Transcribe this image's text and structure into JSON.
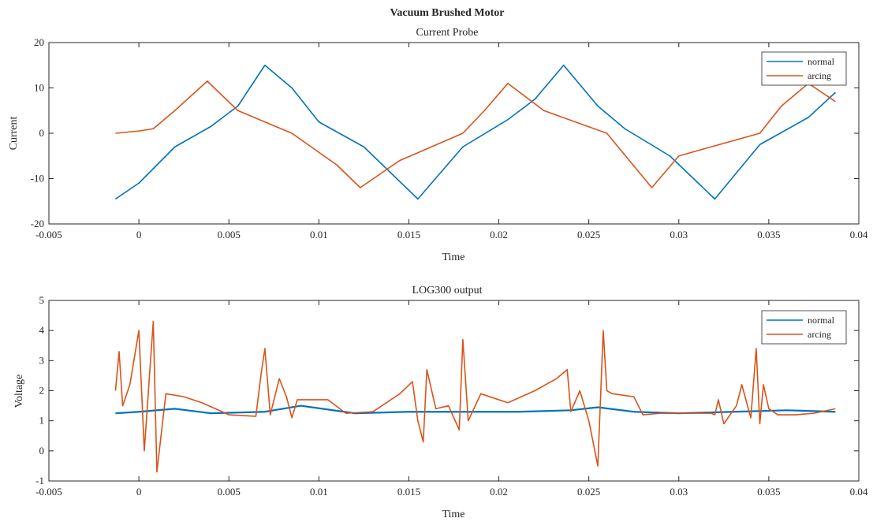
{
  "figure": {
    "title": "Vacuum Brushed Motor"
  },
  "chart_data": [
    {
      "type": "line",
      "title": "Current Probe",
      "xlabel": "Time",
      "ylabel": "Current",
      "xlim": [
        -0.005,
        0.04
      ],
      "ylim": [
        -20,
        20
      ],
      "xticks": [
        "-0.005",
        "0",
        "0.005",
        "0.01",
        "0.015",
        "0.02",
        "0.025",
        "0.03",
        "0.035",
        "0.04"
      ],
      "yticks": [
        "-20",
        "-10",
        "0",
        "10",
        "20"
      ],
      "grid": false,
      "legend_position": "top-right",
      "series": [
        {
          "name": "normal",
          "color": "#0072BD",
          "x": [
            -0.0013,
            0.0,
            0.002,
            0.004,
            0.0055,
            0.007,
            0.0085,
            0.01,
            0.0125,
            0.0155,
            0.018,
            0.0205,
            0.022,
            0.0236,
            0.0255,
            0.027,
            0.0295,
            0.032,
            0.0345,
            0.0372,
            0.0387
          ],
          "y": [
            -14.5,
            -11,
            -3,
            1.5,
            6,
            15,
            10,
            2.5,
            -3,
            -14.5,
            -3,
            3,
            7.5,
            15,
            6,
            1,
            -5,
            -14.5,
            -2.5,
            3.5,
            9
          ]
        },
        {
          "name": "arcing",
          "color": "#D95319",
          "x": [
            -0.0013,
            0.0,
            0.0008,
            0.002,
            0.0038,
            0.0055,
            0.0085,
            0.011,
            0.0123,
            0.0145,
            0.018,
            0.0192,
            0.0205,
            0.0225,
            0.026,
            0.0285,
            0.03,
            0.0345,
            0.0357,
            0.0372,
            0.0387
          ],
          "y": [
            0,
            0.5,
            1,
            5,
            11.5,
            5,
            0,
            -7,
            -12,
            -6,
            0,
            5,
            11,
            5,
            0,
            -12,
            -5,
            0,
            6,
            11,
            7
          ]
        }
      ]
    },
    {
      "type": "line",
      "title": "LOG300 output",
      "xlabel": "Time",
      "ylabel": "Voltage",
      "xlim": [
        -0.005,
        0.04
      ],
      "ylim": [
        -1,
        5
      ],
      "xticks": [
        "-0.005",
        "0",
        "0.005",
        "0.01",
        "0.015",
        "0.02",
        "0.025",
        "0.03",
        "0.035",
        "0.04"
      ],
      "yticks": [
        "-1",
        "0",
        "1",
        "2",
        "3",
        "4",
        "5"
      ],
      "grid": false,
      "legend_position": "top-right",
      "series": [
        {
          "name": "normal",
          "color": "#0072BD",
          "x": [
            -0.0013,
            0.0,
            0.002,
            0.004,
            0.007,
            0.009,
            0.012,
            0.015,
            0.018,
            0.021,
            0.024,
            0.0255,
            0.0275,
            0.03,
            0.033,
            0.036,
            0.0387
          ],
          "y": [
            1.25,
            1.3,
            1.4,
            1.25,
            1.3,
            1.5,
            1.25,
            1.3,
            1.3,
            1.3,
            1.35,
            1.45,
            1.3,
            1.25,
            1.3,
            1.35,
            1.3
          ]
        },
        {
          "name": "arcing",
          "color": "#D95319",
          "x": [
            -0.0013,
            -0.0011,
            -0.0009,
            -0.0005,
            0.0,
            0.0003,
            0.0006,
            0.0008,
            0.001,
            0.0015,
            0.0025,
            0.0035,
            0.005,
            0.0065,
            0.0068,
            0.007,
            0.0073,
            0.0078,
            0.0082,
            0.0085,
            0.0088,
            0.0095,
            0.0105,
            0.0115,
            0.013,
            0.0145,
            0.0152,
            0.0155,
            0.0158,
            0.016,
            0.0165,
            0.0172,
            0.0178,
            0.018,
            0.0183,
            0.019,
            0.0205,
            0.022,
            0.0232,
            0.0238,
            0.024,
            0.0245,
            0.025,
            0.0255,
            0.0258,
            0.026,
            0.0263,
            0.0275,
            0.028,
            0.029,
            0.0305,
            0.0318,
            0.032,
            0.0322,
            0.0325,
            0.0332,
            0.0335,
            0.034,
            0.0343,
            0.0345,
            0.0347,
            0.035,
            0.0355,
            0.0365,
            0.0375,
            0.0387
          ],
          "y": [
            2.0,
            3.3,
            1.5,
            2.2,
            4.0,
            0.0,
            2.6,
            4.3,
            -0.7,
            1.9,
            1.8,
            1.6,
            1.2,
            1.15,
            2.6,
            3.4,
            1.2,
            2.4,
            1.8,
            1.1,
            1.7,
            1.7,
            1.7,
            1.25,
            1.3,
            1.9,
            2.3,
            1.0,
            0.3,
            2.7,
            1.4,
            1.5,
            0.7,
            3.7,
            1.0,
            1.9,
            1.6,
            2.0,
            2.4,
            2.7,
            1.3,
            2.0,
            1.0,
            -0.5,
            4.0,
            2.0,
            1.9,
            1.8,
            1.2,
            1.25,
            1.25,
            1.25,
            1.2,
            1.7,
            0.9,
            1.5,
            2.2,
            1.1,
            3.4,
            0.9,
            2.2,
            1.4,
            1.2,
            1.2,
            1.25,
            1.4
          ]
        }
      ]
    }
  ]
}
